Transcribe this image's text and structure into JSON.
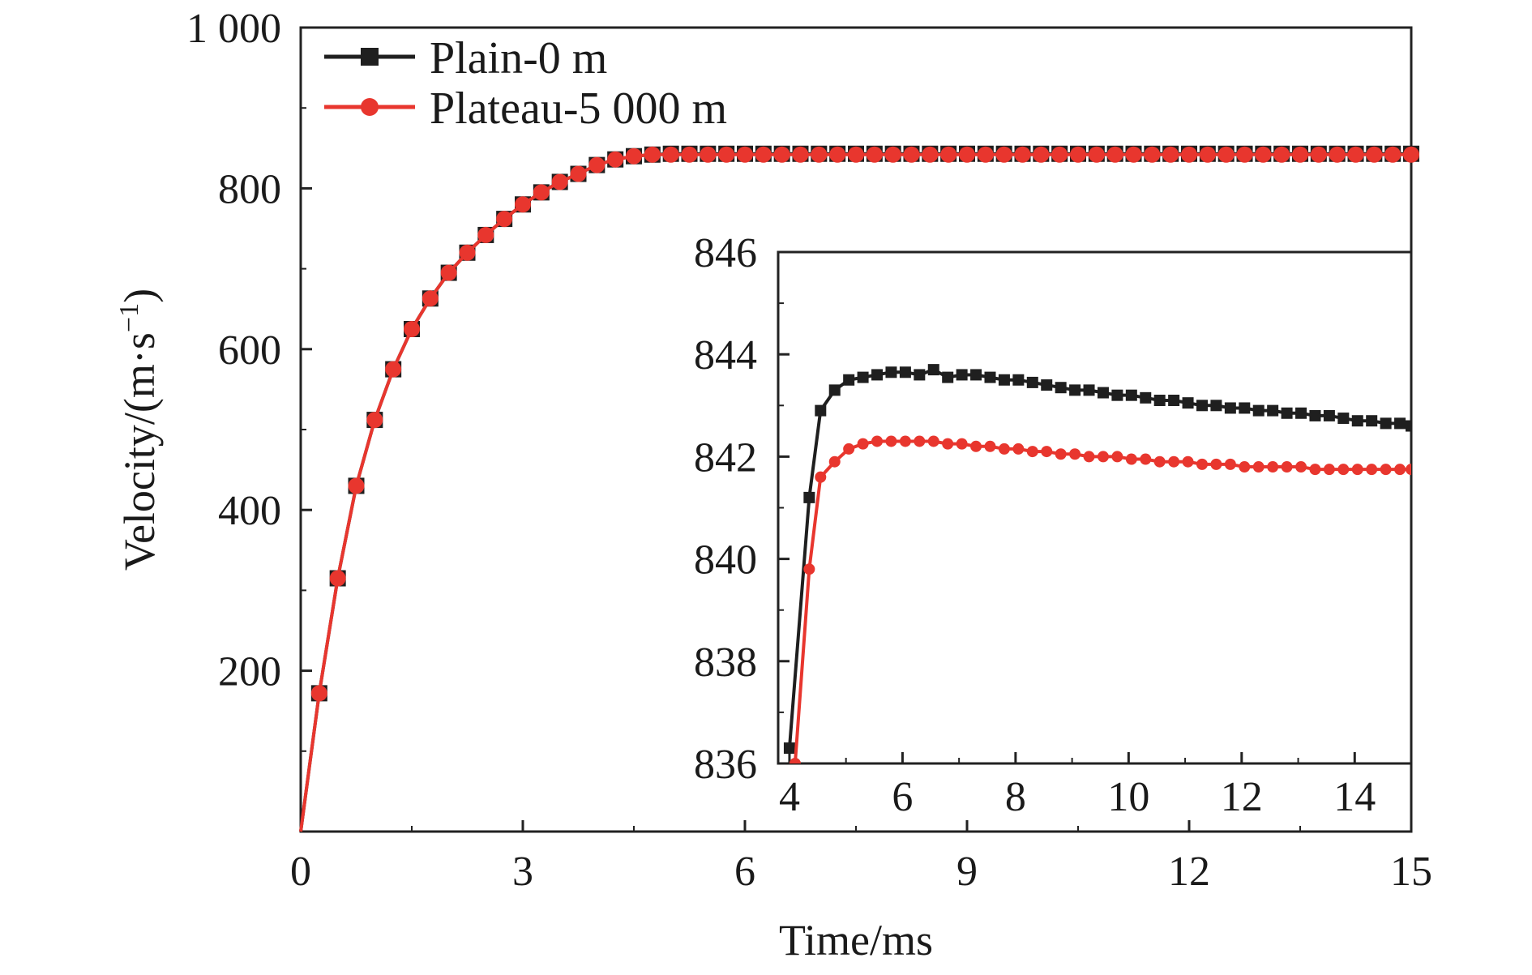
{
  "chart_data": [
    {
      "type": "line",
      "role": "main",
      "xlabel": "Time/ms",
      "ylabel": "Velocity/(m·s",
      "ylabel_sup": "−1",
      "ylabel_close": ")",
      "xlim": [
        0,
        15
      ],
      "ylim": [
        0,
        1000
      ],
      "x_ticks": [
        0,
        3,
        6,
        9,
        12,
        15
      ],
      "x_tick_labels": [
        "0",
        "3",
        "6",
        "9",
        "12",
        "15"
      ],
      "y_ticks": [
        200,
        400,
        600,
        800,
        1000
      ],
      "y_tick_labels": [
        "200",
        "400",
        "600",
        "800",
        "1 000"
      ],
      "legend_position": "top-left",
      "grid": false,
      "x": [
        0,
        0.25,
        0.5,
        0.75,
        1.0,
        1.25,
        1.5,
        1.75,
        2.0,
        2.25,
        2.5,
        2.75,
        3.0,
        3.25,
        3.5,
        3.75,
        4.0,
        4.25,
        4.5,
        4.75,
        5.0,
        5.25,
        5.5,
        5.75,
        6.0,
        6.25,
        6.5,
        6.75,
        7.0,
        7.25,
        7.5,
        7.75,
        8.0,
        8.25,
        8.5,
        8.75,
        9.0,
        9.25,
        9.5,
        9.75,
        10.0,
        10.25,
        10.5,
        10.75,
        11.0,
        11.25,
        11.5,
        11.75,
        12.0,
        12.25,
        12.5,
        12.75,
        13.0,
        13.25,
        13.5,
        13.75,
        14.0,
        14.25,
        14.5,
        14.75,
        15.0
      ],
      "series": [
        {
          "name": "Plain-0 m",
          "color": "#1f1f1f",
          "marker": "square",
          "values": [
            0,
            172,
            315,
            430,
            512,
            575,
            625,
            663,
            695,
            720,
            742,
            762,
            780,
            795,
            808,
            818,
            829,
            836,
            840,
            842,
            843,
            843,
            843,
            843,
            843,
            843,
            843,
            843,
            843,
            843,
            843,
            843,
            843,
            843,
            843,
            843,
            843,
            843,
            843,
            843,
            843,
            843,
            843,
            843,
            843,
            843,
            843,
            843,
            843,
            843,
            843,
            843,
            843,
            843,
            843,
            843,
            843,
            843,
            843,
            843,
            843
          ]
        },
        {
          "name": "Plateau-5 000 m",
          "color": "#e8362e",
          "marker": "circle",
          "values": [
            0,
            172,
            315,
            430,
            512,
            575,
            625,
            663,
            695,
            720,
            742,
            762,
            780,
            795,
            808,
            818,
            829,
            836,
            840,
            842,
            842,
            842,
            842,
            842,
            842,
            842,
            842,
            842,
            842,
            842,
            842,
            842,
            842,
            842,
            842,
            842,
            842,
            842,
            842,
            842,
            842,
            842,
            842,
            842,
            842,
            842,
            842,
            842,
            842,
            842,
            842,
            842,
            842,
            842,
            842,
            842,
            842,
            842,
            842,
            842,
            842
          ]
        }
      ]
    },
    {
      "type": "line",
      "role": "inset",
      "xlim": [
        3.8,
        15
      ],
      "ylim": [
        836,
        846
      ],
      "x_ticks": [
        4,
        6,
        8,
        10,
        12,
        14
      ],
      "x_tick_labels": [
        "4",
        "6",
        "8",
        "10",
        "12",
        "14"
      ],
      "y_ticks": [
        836,
        838,
        840,
        842,
        844,
        846
      ],
      "y_tick_labels": [
        "836",
        "838",
        "840",
        "842",
        "844",
        "846"
      ],
      "grid": false,
      "series": [
        {
          "name": "Plain-0 m",
          "color": "#1f1f1f",
          "marker": "square",
          "x": [
            4.0,
            4.35,
            4.55,
            4.8,
            5.05,
            5.3,
            5.55,
            5.8,
            6.05,
            6.3,
            6.55,
            6.8,
            7.05,
            7.3,
            7.55,
            7.8,
            8.05,
            8.3,
            8.55,
            8.8,
            9.05,
            9.3,
            9.55,
            9.8,
            10.05,
            10.3,
            10.55,
            10.8,
            11.05,
            11.3,
            11.55,
            11.8,
            12.05,
            12.3,
            12.55,
            12.8,
            13.05,
            13.3,
            13.55,
            13.8,
            14.05,
            14.3,
            14.55,
            14.8,
            15.0
          ],
          "y": [
            836.3,
            841.2,
            842.9,
            843.3,
            843.5,
            843.55,
            843.6,
            843.65,
            843.65,
            843.6,
            843.7,
            843.55,
            843.6,
            843.6,
            843.55,
            843.5,
            843.5,
            843.45,
            843.4,
            843.35,
            843.3,
            843.3,
            843.25,
            843.2,
            843.2,
            843.15,
            843.1,
            843.1,
            843.05,
            843.0,
            843.0,
            842.95,
            842.95,
            842.9,
            842.9,
            842.85,
            842.85,
            842.8,
            842.8,
            842.75,
            842.7,
            842.7,
            842.65,
            842.65,
            842.6
          ]
        },
        {
          "name": "Plateau-5 000 m",
          "color": "#e8362e",
          "marker": "circle",
          "x": [
            4.1,
            4.35,
            4.55,
            4.8,
            5.05,
            5.3,
            5.55,
            5.8,
            6.05,
            6.3,
            6.55,
            6.8,
            7.05,
            7.3,
            7.55,
            7.8,
            8.05,
            8.3,
            8.55,
            8.8,
            9.05,
            9.3,
            9.55,
            9.8,
            10.05,
            10.3,
            10.55,
            10.8,
            11.05,
            11.3,
            11.55,
            11.8,
            12.05,
            12.3,
            12.55,
            12.8,
            13.05,
            13.3,
            13.55,
            13.8,
            14.05,
            14.3,
            14.55,
            14.8,
            15.0
          ],
          "y": [
            836.0,
            839.8,
            841.6,
            841.9,
            842.15,
            842.25,
            842.3,
            842.3,
            842.3,
            842.3,
            842.3,
            842.25,
            842.25,
            842.2,
            842.2,
            842.15,
            842.15,
            842.1,
            842.1,
            842.05,
            842.05,
            842.0,
            842.0,
            842.0,
            841.95,
            841.95,
            841.9,
            841.9,
            841.9,
            841.85,
            841.85,
            841.85,
            841.8,
            841.8,
            841.8,
            841.8,
            841.8,
            841.75,
            841.75,
            841.75,
            841.75,
            841.75,
            841.75,
            841.75,
            841.75
          ]
        }
      ]
    }
  ]
}
